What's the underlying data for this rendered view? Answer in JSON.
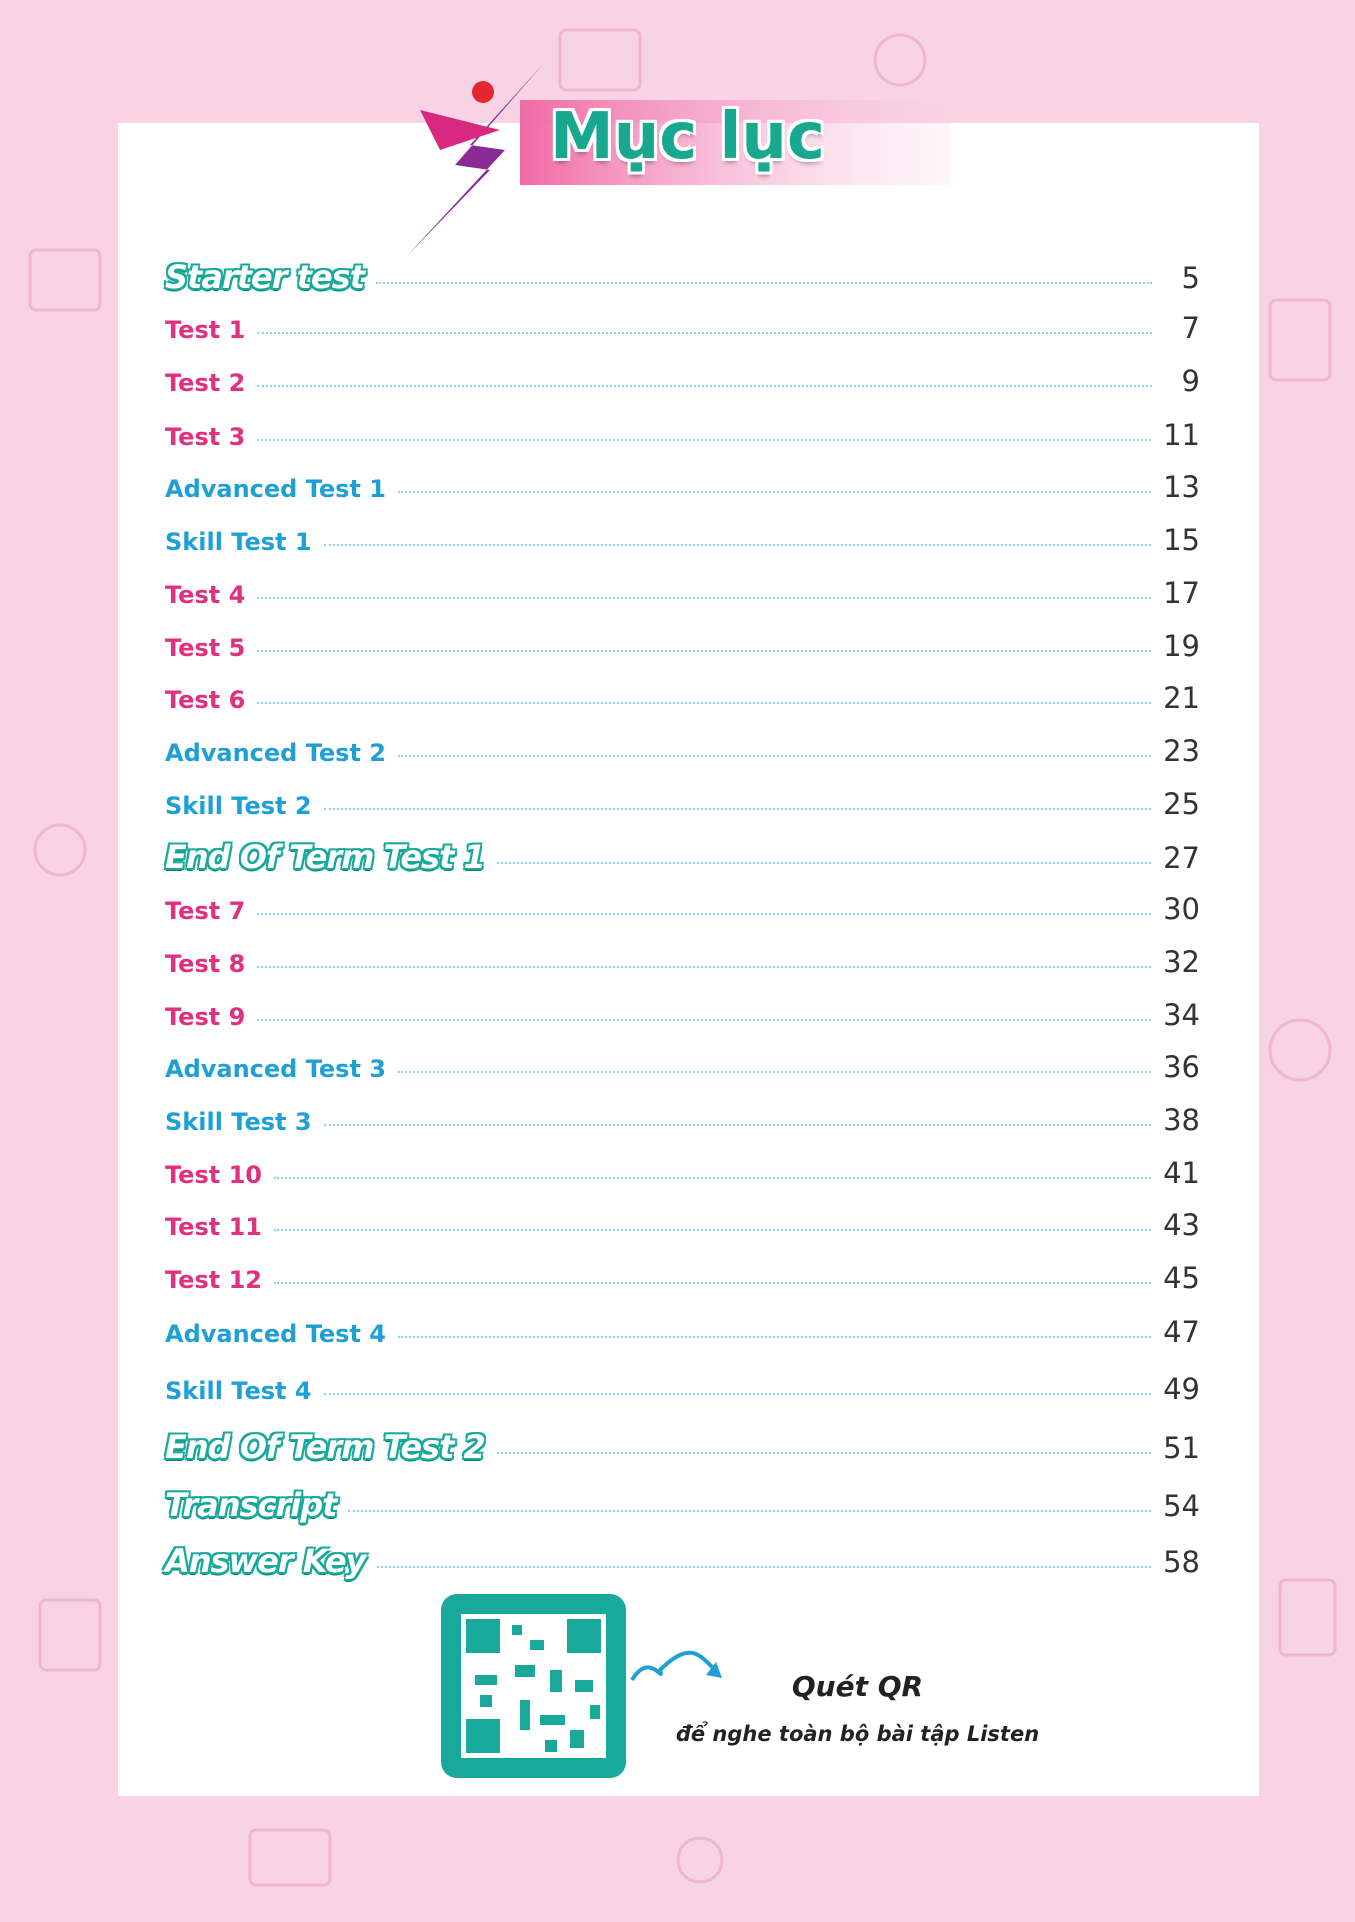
{
  "header": {
    "title": "Mục lục"
  },
  "entries": [
    {
      "label": "Starter test",
      "page": 5,
      "color": "#18a99b"
    },
    {
      "label": "Test 1",
      "page": 7,
      "color": "#e0307f"
    },
    {
      "label": "Test 2",
      "page": 9,
      "color": "#e0307f"
    },
    {
      "label": "Test 3",
      "page": 11,
      "color": "#e0307f"
    },
    {
      "label": "Advanced Test 1",
      "page": 13,
      "color": "#1e9fd6"
    },
    {
      "label": "Skill Test 1",
      "page": 15,
      "color": "#1e9fd6"
    },
    {
      "label": "Test 4",
      "page": 17,
      "color": "#e0307f"
    },
    {
      "label": "Test 5",
      "page": 19,
      "color": "#e0307f"
    },
    {
      "label": "Test 6",
      "page": 21,
      "color": "#e0307f"
    },
    {
      "label": "Advanced Test 2",
      "page": 23,
      "color": "#1e9fd6"
    },
    {
      "label": "Skill Test 2",
      "page": 25,
      "color": "#1e9fd6"
    },
    {
      "label": "End Of Term Test 1",
      "page": 27,
      "color": "#18a99b"
    },
    {
      "label": "Test 7",
      "page": 30,
      "color": "#e0307f"
    },
    {
      "label": "Test 8",
      "page": 32,
      "color": "#e0307f"
    },
    {
      "label": "Test 9",
      "page": 34,
      "color": "#e0307f"
    },
    {
      "label": "Advanced Test 3",
      "page": 36,
      "color": "#1e9fd6"
    },
    {
      "label": "Skill Test 3",
      "page": 38,
      "color": "#1e9fd6"
    },
    {
      "label": "Test 10",
      "page": 41,
      "color": "#e0307f"
    },
    {
      "label": "Test 11",
      "page": 43,
      "color": "#e0307f"
    },
    {
      "label": "Test 12",
      "page": 45,
      "color": "#e0307f"
    },
    {
      "label": "Advanced Test 4",
      "page": 47,
      "color": "#1e9fd6"
    },
    {
      "label": "Skill Test 4",
      "page": 49,
      "color": "#1e9fd6"
    },
    {
      "label": "End Of Term Test 2",
      "page": 51,
      "color": "#18a99b"
    },
    {
      "label": "Transcript",
      "page": 54,
      "color": "#18a99b"
    },
    {
      "label": "Answer Key",
      "page": 58,
      "color": "#18a99b"
    }
  ],
  "qr": {
    "title": "Quét QR",
    "caption": "để nghe toàn bộ bài tập Listen"
  }
}
